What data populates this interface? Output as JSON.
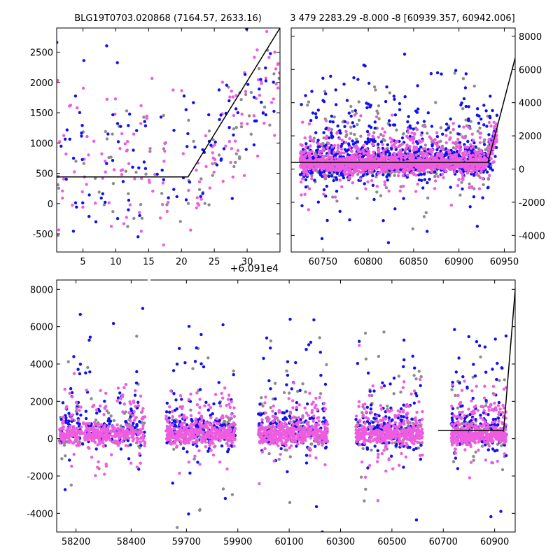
{
  "chart_data": [
    {
      "id": "top-left",
      "type": "scatter",
      "title": "BLG19T0703.020868 (7164.57, 2633.16)",
      "x_offset_label": "+6.091e4",
      "xlim": [
        1,
        35
      ],
      "ylim": [
        -800,
        2900
      ],
      "xticks": [
        5,
        10,
        15,
        20,
        25,
        30
      ],
      "yticks": [
        -500,
        0,
        500,
        1000,
        1500,
        2000,
        2500
      ],
      "ytick_side": "left",
      "model_line": [
        [
          1,
          440
        ],
        [
          21,
          440
        ],
        [
          35,
          2900
        ]
      ],
      "series": [
        {
          "name": "gray",
          "color": "#8c8c8c",
          "x_center": [
            1,
            35
          ],
          "y_center": 500,
          "n": 70,
          "spread": 700
        },
        {
          "name": "magenta",
          "color": "#ee5ce0",
          "x_center": [
            1,
            35
          ],
          "y_center": 600,
          "n": 140,
          "spread": 750
        },
        {
          "name": "blue",
          "color": "#1010f0",
          "x_center": [
            1,
            35
          ],
          "y_center": 700,
          "n": 110,
          "spread": 800
        }
      ]
    },
    {
      "id": "top-right",
      "type": "scatter",
      "title": "3 479 2283.29 -8.000 -8 [60939.357, 60942.006]",
      "xlim": [
        60715,
        60962
      ],
      "ylim": [
        -5000,
        8500
      ],
      "xticks": [
        60750,
        60800,
        60850,
        60900,
        60950
      ],
      "yticks": [
        -4000,
        -2000,
        0,
        2000,
        4000,
        6000,
        8000
      ],
      "ytick_side": "right",
      "model_line": [
        [
          60715,
          400
        ],
        [
          60932,
          400
        ],
        [
          60962,
          6700
        ]
      ],
      "data_range": [
        60725,
        60942
      ],
      "series": [
        {
          "name": "gray",
          "color": "#8c8c8c",
          "y_center": 300,
          "n": 500,
          "spread": 1200
        },
        {
          "name": "blue",
          "color": "#1010f0",
          "y_center": 400,
          "n": 900,
          "spread": 1400
        },
        {
          "name": "magenta",
          "color": "#ee5ce0",
          "y_center": 300,
          "n": 1600,
          "spread": 600
        }
      ]
    },
    {
      "id": "bottom",
      "type": "scatter",
      "title": "",
      "ylim": [
        -5000,
        8500
      ],
      "yticks": [
        -4000,
        -2000,
        0,
        2000,
        4000,
        6000,
        8000
      ],
      "ytick_side": "left",
      "broken_axis": true,
      "segments": [
        {
          "xlim": [
            58130,
            58460
          ],
          "xticks": [
            58200,
            58400
          ],
          "groups": [
            [
              58140,
              58450
            ]
          ]
        },
        {
          "xlim": [
            59560,
            60980
          ],
          "xticks": [
            59700,
            59900,
            60100,
            60300,
            60500,
            60700,
            60900
          ],
          "groups": [
            [
              59620,
              59890
            ],
            [
              59980,
              60250
            ],
            [
              60360,
              60620
            ],
            [
              60730,
              60945
            ]
          ],
          "model_line": [
            [
              60680,
              450
            ],
            [
              60935,
              450
            ],
            [
              60985,
              8800
            ]
          ]
        }
      ],
      "series": [
        {
          "name": "gray",
          "color": "#8c8c8c",
          "y_center": 300,
          "spread": 1300
        },
        {
          "name": "blue",
          "color": "#1010f0",
          "y_center": 400,
          "spread": 1500
        },
        {
          "name": "magenta",
          "color": "#ee5ce0",
          "y_center": 200,
          "spread": 700
        }
      ]
    }
  ]
}
